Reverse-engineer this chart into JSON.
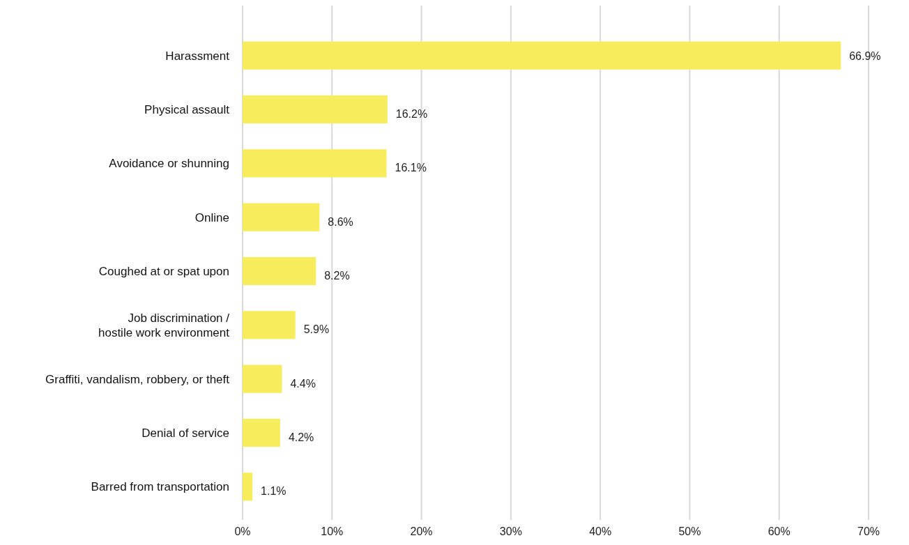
{
  "chart_data": {
    "type": "bar",
    "orientation": "horizontal",
    "categories": [
      "Harassment",
      "Physical assault",
      "Avoidance or shunning",
      "Online",
      "Coughed at or spat upon",
      "Job discrimination /\nhostile work environment",
      "Graffiti, vandalism, robbery, or theft",
      "Denial of service",
      "Barred from transportation"
    ],
    "values": [
      66.9,
      16.2,
      16.1,
      8.6,
      8.2,
      5.9,
      4.4,
      4.2,
      1.1
    ],
    "value_labels": [
      "66.9%",
      "16.2%",
      "16.1%",
      "8.6%",
      "8.2%",
      "5.9%",
      "4.4%",
      "4.2%",
      "1.1%"
    ],
    "color": "#f7ec5c",
    "xlim": [
      0,
      70
    ],
    "xticks": [
      {
        "value": 0,
        "label": "0%"
      },
      {
        "value": 10,
        "label": "10%"
      },
      {
        "value": 20,
        "label": "20%"
      },
      {
        "value": 30,
        "label": "30%"
      },
      {
        "value": 40,
        "label": "40%"
      },
      {
        "value": 50,
        "label": "50%"
      },
      {
        "value": 60,
        "label": "60%"
      },
      {
        "value": 70,
        "label": "70%"
      }
    ],
    "grid": "x"
  }
}
